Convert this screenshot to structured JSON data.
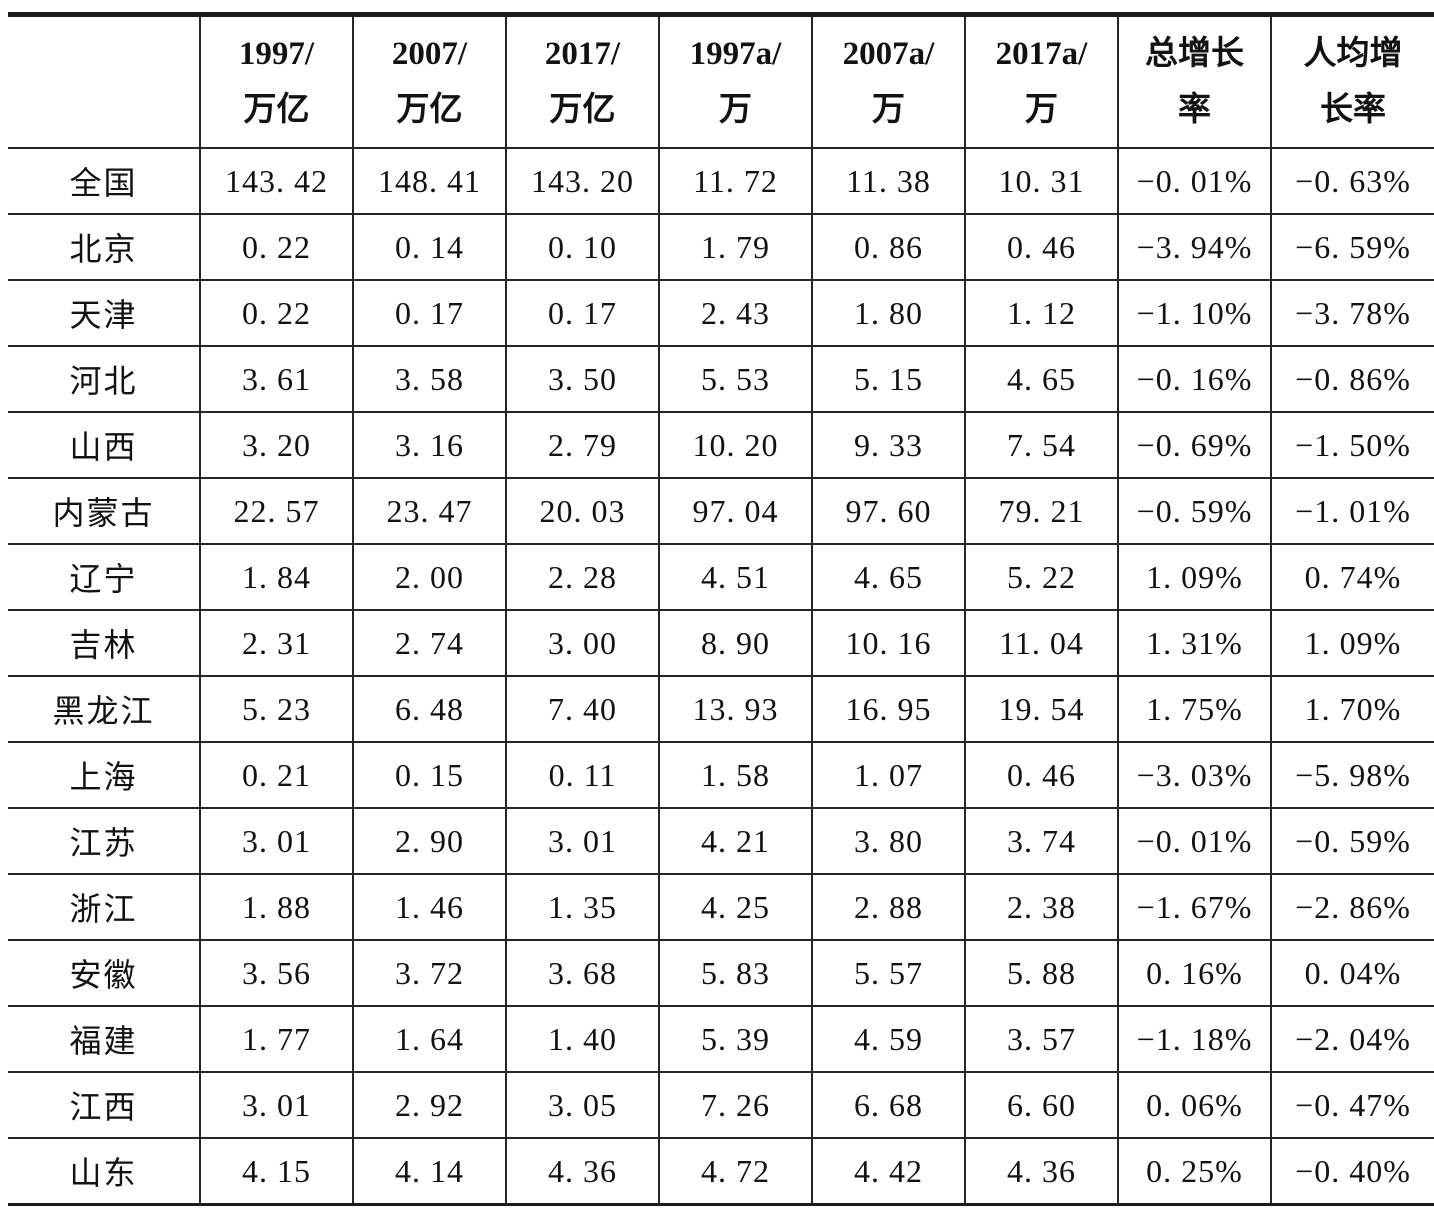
{
  "chart_data": {
    "type": "table",
    "header": {
      "corner": "",
      "columns": [
        {
          "line1": "1997/",
          "line2": "万亿"
        },
        {
          "line1": "2007/",
          "line2": "万亿"
        },
        {
          "line1": "2017/",
          "line2": "万亿"
        },
        {
          "line1": "1997a/",
          "line2": "万"
        },
        {
          "line1": "2007a/",
          "line2": "万"
        },
        {
          "line1": "2017a/",
          "line2": "万"
        },
        {
          "line1": "总增长",
          "line2": "率"
        },
        {
          "line1": "人均增",
          "line2": "长率"
        }
      ]
    },
    "rows": [
      {
        "label": "全国",
        "values": [
          "143. 42",
          "148. 41",
          "143. 20",
          "11. 72",
          "11. 38",
          "10. 31",
          "−0. 01%",
          "−0. 63%"
        ]
      },
      {
        "label": "北京",
        "values": [
          "0. 22",
          "0. 14",
          "0. 10",
          "1. 79",
          "0. 86",
          "0. 46",
          "−3. 94%",
          "−6. 59%"
        ]
      },
      {
        "label": "天津",
        "values": [
          "0. 22",
          "0. 17",
          "0. 17",
          "2. 43",
          "1. 80",
          "1. 12",
          "−1. 10%",
          "−3. 78%"
        ]
      },
      {
        "label": "河北",
        "values": [
          "3. 61",
          "3. 58",
          "3. 50",
          "5. 53",
          "5. 15",
          "4. 65",
          "−0. 16%",
          "−0. 86%"
        ]
      },
      {
        "label": "山西",
        "values": [
          "3. 20",
          "3. 16",
          "2. 79",
          "10. 20",
          "9. 33",
          "7. 54",
          "−0. 69%",
          "−1. 50%"
        ]
      },
      {
        "label": "内蒙古",
        "values": [
          "22. 57",
          "23. 47",
          "20. 03",
          "97. 04",
          "97. 60",
          "79. 21",
          "−0. 59%",
          "−1. 01%"
        ]
      },
      {
        "label": "辽宁",
        "values": [
          "1. 84",
          "2. 00",
          "2. 28",
          "4. 51",
          "4. 65",
          "5. 22",
          "1. 09%",
          "0. 74%"
        ]
      },
      {
        "label": "吉林",
        "values": [
          "2. 31",
          "2. 74",
          "3. 00",
          "8. 90",
          "10. 16",
          "11. 04",
          "1. 31%",
          "1. 09%"
        ]
      },
      {
        "label": "黑龙江",
        "values": [
          "5. 23",
          "6. 48",
          "7. 40",
          "13. 93",
          "16. 95",
          "19. 54",
          "1. 75%",
          "1. 70%"
        ]
      },
      {
        "label": "上海",
        "values": [
          "0. 21",
          "0. 15",
          "0. 11",
          "1. 58",
          "1. 07",
          "0. 46",
          "−3. 03%",
          "−5. 98%"
        ]
      },
      {
        "label": "江苏",
        "values": [
          "3. 01",
          "2. 90",
          "3. 01",
          "4. 21",
          "3. 80",
          "3. 74",
          "−0. 01%",
          "−0. 59%"
        ]
      },
      {
        "label": "浙江",
        "values": [
          "1. 88",
          "1. 46",
          "1. 35",
          "4. 25",
          "2. 88",
          "2. 38",
          "−1. 67%",
          "−2. 86%"
        ]
      },
      {
        "label": "安徽",
        "values": [
          "3. 56",
          "3. 72",
          "3. 68",
          "5. 83",
          "5. 57",
          "5. 88",
          "0. 16%",
          "0. 04%"
        ]
      },
      {
        "label": "福建",
        "values": [
          "1. 77",
          "1. 64",
          "1. 40",
          "5. 39",
          "4. 59",
          "3. 57",
          "−1. 18%",
          "−2. 04%"
        ]
      },
      {
        "label": "江西",
        "values": [
          "3. 01",
          "2. 92",
          "3. 05",
          "7. 26",
          "6. 68",
          "6. 60",
          "0. 06%",
          "−0. 47%"
        ]
      },
      {
        "label": "山东",
        "values": [
          "4. 15",
          "4. 14",
          "4. 36",
          "4. 72",
          "4. 42",
          "4. 36",
          "0. 25%",
          "−0. 40%"
        ]
      }
    ]
  }
}
